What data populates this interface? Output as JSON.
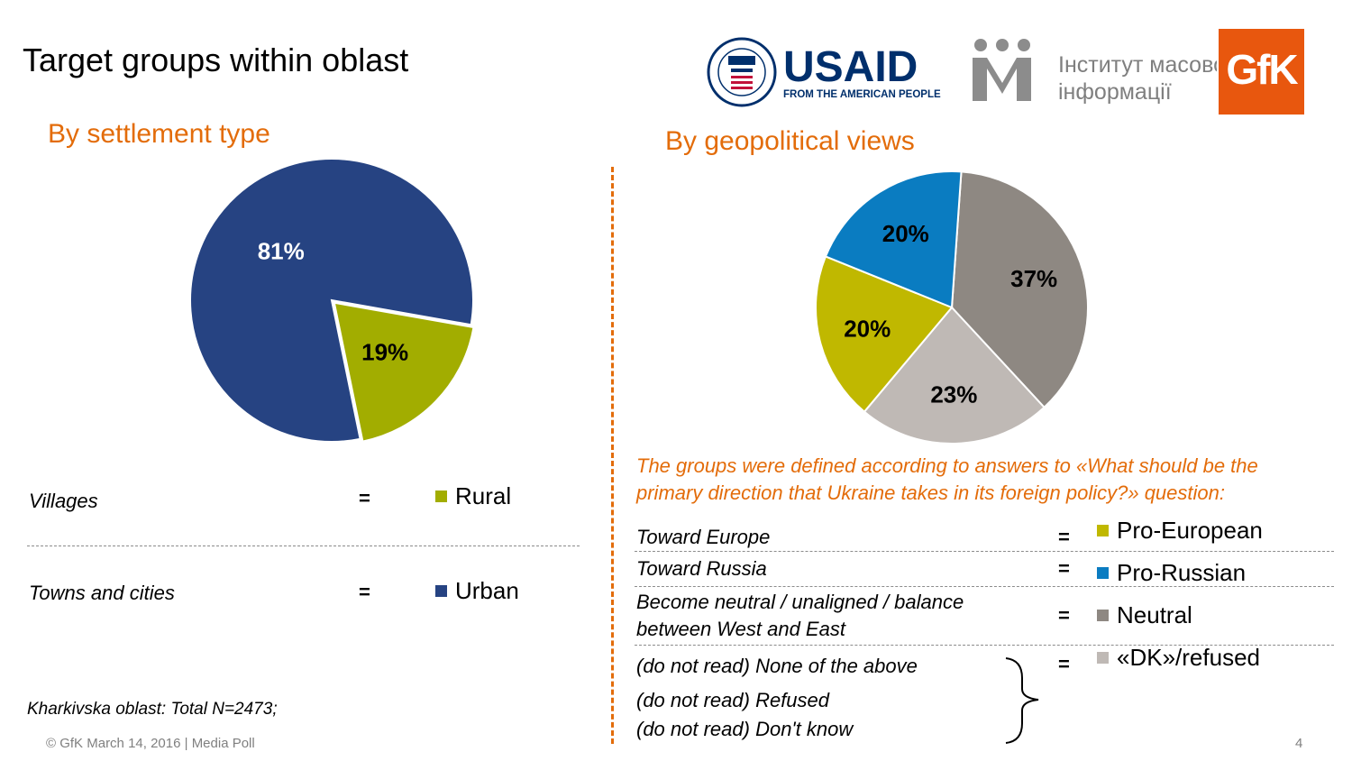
{
  "title": "Target groups within oblast",
  "logos": {
    "usaid_text": "USAID",
    "usaid_tagline": "FROM THE AMERICAN PEOPLE",
    "imi_line1": "Інститут масової",
    "imi_line2": "інформації",
    "gfk": "GfK"
  },
  "left_section": {
    "subtitle": "By settlement type",
    "rows": [
      {
        "definition": "Villages",
        "equals": "=",
        "group": "Rural",
        "color": "#A2AD00"
      },
      {
        "definition": "Towns and cities",
        "equals": "=",
        "group": "Urban",
        "color": "#264382"
      }
    ],
    "footnote": "Kharkivska oblast: Total N=2473;"
  },
  "right_section": {
    "subtitle": "By geopolitical views",
    "note_line1": "The groups were defined according to answers to «What should be the",
    "note_line2": "primary direction that Ukraine takes in its foreign policy?» question:",
    "rows": [
      {
        "definition_lines": [
          "Toward Europe"
        ],
        "equals": "=",
        "group": "Pro-European",
        "color": "#C0B800"
      },
      {
        "definition_lines": [
          "Toward Russia"
        ],
        "equals": "=",
        "group": "Pro-Russian",
        "color": "#0A7CC1"
      },
      {
        "definition_lines": [
          "Become neutral / unaligned / balance",
          "between West and East"
        ],
        "equals": "=",
        "group": "Neutral",
        "color": "#8E8882"
      },
      {
        "definition_lines": [
          "(do not read) None of the above",
          "(do not read) Refused",
          "(do not read) Don't know"
        ],
        "equals": "=",
        "group": "«DK»/refused",
        "color": "#BFB9B5"
      }
    ]
  },
  "chart_data": [
    {
      "type": "pie",
      "title": "By settlement type",
      "categories": [
        "Rural",
        "Urban"
      ],
      "values": [
        19,
        81
      ],
      "labels": [
        "19%",
        "81%"
      ],
      "colors": [
        "#A2AD00",
        "#264382"
      ],
      "label_colors": [
        "#000000",
        "#ffffff"
      ]
    },
    {
      "type": "pie",
      "title": "By geopolitical views",
      "categories": [
        "Neutral",
        "«DK»/refused",
        "Pro-European",
        "Pro-Russian"
      ],
      "values": [
        37,
        23,
        20,
        20
      ],
      "labels": [
        "37%",
        "23%",
        "20%",
        "20%"
      ],
      "colors": [
        "#8E8882",
        "#BFB9B5",
        "#C0B800",
        "#0A7CC1"
      ],
      "label_colors": [
        "#000000",
        "#000000",
        "#000000",
        "#000000"
      ]
    }
  ],
  "footer": {
    "text": "© GfK March 14, 2016 | Media Poll",
    "page_number": "4"
  }
}
